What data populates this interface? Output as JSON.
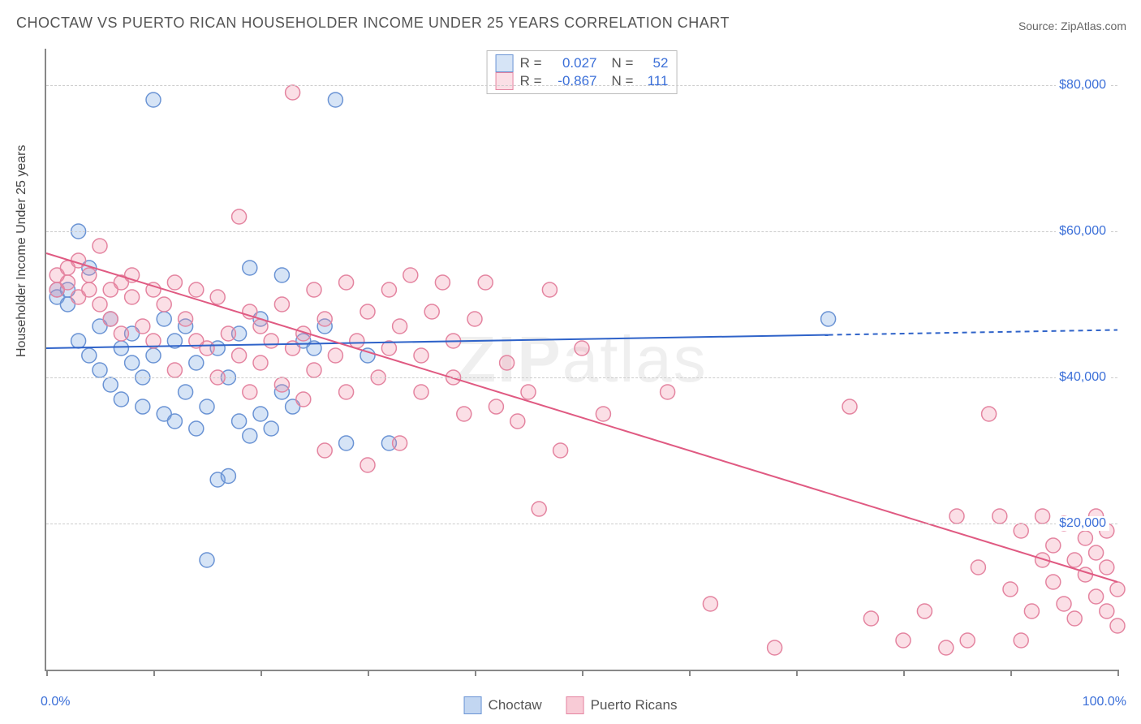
{
  "title": "CHOCTAW VS PUERTO RICAN HOUSEHOLDER INCOME UNDER 25 YEARS CORRELATION CHART",
  "source_label": "Source: ZipAtlas.com",
  "watermark": "ZIPatlas",
  "ylabel": "Householder Income Under 25 years",
  "chart": {
    "type": "scatter",
    "xlim": [
      0,
      100
    ],
    "ylim": [
      0,
      85000
    ],
    "x_axis_left_label": "0.0%",
    "x_axis_right_label": "100.0%",
    "y_gridlines": [
      20000,
      40000,
      60000,
      80000
    ],
    "y_gridline_labels": [
      "$20,000",
      "$40,000",
      "$60,000",
      "$80,000"
    ],
    "x_ticks": [
      0,
      10,
      20,
      30,
      40,
      50,
      60,
      70,
      80,
      90,
      100
    ],
    "background_color": "#ffffff",
    "grid_color": "#cccccc",
    "axis_color": "#888888",
    "tick_label_color": "#3b6fd8",
    "marker_radius": 9,
    "marker_stroke_width": 1.5,
    "series": [
      {
        "name": "Choctaw",
        "fill": "rgba(120,165,225,0.30)",
        "stroke": "#6a93d4",
        "R": "0.027",
        "N": "52",
        "trend": {
          "y_at_x0": 44000,
          "y_at_x100": 46500,
          "solid_to_x": 73,
          "color": "#2f63c9",
          "width": 2
        },
        "points": [
          [
            1,
            52000
          ],
          [
            1,
            51000
          ],
          [
            2,
            50000
          ],
          [
            2,
            52000
          ],
          [
            3,
            60000
          ],
          [
            3,
            45000
          ],
          [
            4,
            43000
          ],
          [
            4,
            55000
          ],
          [
            5,
            47000
          ],
          [
            5,
            41000
          ],
          [
            6,
            39000
          ],
          [
            6,
            48000
          ],
          [
            7,
            44000
          ],
          [
            7,
            37000
          ],
          [
            8,
            42000
          ],
          [
            8,
            46000
          ],
          [
            9,
            40000
          ],
          [
            9,
            36000
          ],
          [
            10,
            78000
          ],
          [
            10,
            43000
          ],
          [
            11,
            35000
          ],
          [
            11,
            48000
          ],
          [
            12,
            34000
          ],
          [
            12,
            45000
          ],
          [
            13,
            47000
          ],
          [
            13,
            38000
          ],
          [
            14,
            33000
          ],
          [
            14,
            42000
          ],
          [
            15,
            15000
          ],
          [
            15,
            36000
          ],
          [
            16,
            26000
          ],
          [
            16,
            44000
          ],
          [
            17,
            40000
          ],
          [
            17,
            26500
          ],
          [
            18,
            46000
          ],
          [
            18,
            34000
          ],
          [
            19,
            55000
          ],
          [
            19,
            32000
          ],
          [
            20,
            48000
          ],
          [
            20,
            35000
          ],
          [
            21,
            33000
          ],
          [
            22,
            54000
          ],
          [
            22,
            38000
          ],
          [
            23,
            36000
          ],
          [
            24,
            45000
          ],
          [
            25,
            44000
          ],
          [
            26,
            47000
          ],
          [
            27,
            78000
          ],
          [
            28,
            31000
          ],
          [
            30,
            43000
          ],
          [
            32,
            31000
          ],
          [
            73,
            48000
          ]
        ]
      },
      {
        "name": "Puerto Ricans",
        "fill": "rgba(240,140,165,0.28)",
        "stroke": "#e484a0",
        "R": "-0.867",
        "N": "111",
        "trend": {
          "y_at_x0": 57000,
          "y_at_x100": 12000,
          "solid_to_x": 100,
          "color": "#e05a82",
          "width": 2
        },
        "points": [
          [
            1,
            54000
          ],
          [
            1,
            52000
          ],
          [
            2,
            53000
          ],
          [
            2,
            55000
          ],
          [
            3,
            51000
          ],
          [
            3,
            56000
          ],
          [
            4,
            52000
          ],
          [
            4,
            54000
          ],
          [
            5,
            58000
          ],
          [
            5,
            50000
          ],
          [
            6,
            52000
          ],
          [
            6,
            48000
          ],
          [
            7,
            53000
          ],
          [
            7,
            46000
          ],
          [
            8,
            54000
          ],
          [
            8,
            51000
          ],
          [
            9,
            47000
          ],
          [
            10,
            52000
          ],
          [
            10,
            45000
          ],
          [
            11,
            50000
          ],
          [
            12,
            53000
          ],
          [
            12,
            41000
          ],
          [
            13,
            48000
          ],
          [
            14,
            52000
          ],
          [
            14,
            45000
          ],
          [
            15,
            44000
          ],
          [
            16,
            51000
          ],
          [
            16,
            40000
          ],
          [
            17,
            46000
          ],
          [
            18,
            62000
          ],
          [
            18,
            43000
          ],
          [
            19,
            49000
          ],
          [
            19,
            38000
          ],
          [
            20,
            47000
          ],
          [
            20,
            42000
          ],
          [
            21,
            45000
          ],
          [
            22,
            50000
          ],
          [
            22,
            39000
          ],
          [
            23,
            79000
          ],
          [
            23,
            44000
          ],
          [
            24,
            46000
          ],
          [
            24,
            37000
          ],
          [
            25,
            52000
          ],
          [
            25,
            41000
          ],
          [
            26,
            48000
          ],
          [
            26,
            30000
          ],
          [
            27,
            43000
          ],
          [
            28,
            53000
          ],
          [
            28,
            38000
          ],
          [
            29,
            45000
          ],
          [
            30,
            28000
          ],
          [
            30,
            49000
          ],
          [
            31,
            40000
          ],
          [
            32,
            44000
          ],
          [
            32,
            52000
          ],
          [
            33,
            47000
          ],
          [
            33,
            31000
          ],
          [
            34,
            54000
          ],
          [
            35,
            38000
          ],
          [
            35,
            43000
          ],
          [
            36,
            49000
          ],
          [
            37,
            53000
          ],
          [
            38,
            40000
          ],
          [
            38,
            45000
          ],
          [
            39,
            35000
          ],
          [
            40,
            48000
          ],
          [
            41,
            53000
          ],
          [
            42,
            36000
          ],
          [
            43,
            42000
          ],
          [
            44,
            34000
          ],
          [
            45,
            38000
          ],
          [
            46,
            22000
          ],
          [
            47,
            52000
          ],
          [
            48,
            30000
          ],
          [
            50,
            44000
          ],
          [
            52,
            35000
          ],
          [
            58,
            38000
          ],
          [
            62,
            9000
          ],
          [
            68,
            3000
          ],
          [
            75,
            36000
          ],
          [
            77,
            7000
          ],
          [
            80,
            4000
          ],
          [
            82,
            8000
          ],
          [
            84,
            3000
          ],
          [
            85,
            21000
          ],
          [
            86,
            4000
          ],
          [
            87,
            14000
          ],
          [
            88,
            35000
          ],
          [
            89,
            21000
          ],
          [
            90,
            11000
          ],
          [
            91,
            19000
          ],
          [
            91,
            4000
          ],
          [
            92,
            8000
          ],
          [
            93,
            15000
          ],
          [
            93,
            21000
          ],
          [
            94,
            12000
          ],
          [
            94,
            17000
          ],
          [
            95,
            9000
          ],
          [
            95,
            20000
          ],
          [
            96,
            15000
          ],
          [
            96,
            7000
          ],
          [
            97,
            13000
          ],
          [
            97,
            18000
          ],
          [
            98,
            10000
          ],
          [
            98,
            16000
          ],
          [
            98,
            21000
          ],
          [
            99,
            8000
          ],
          [
            99,
            14000
          ],
          [
            99,
            19000
          ],
          [
            100,
            11000
          ],
          [
            100,
            6000
          ]
        ]
      }
    ],
    "legend": {
      "swatch_border": 1,
      "items": [
        {
          "label": "Choctaw",
          "fill": "rgba(120,165,225,0.45)",
          "stroke": "#6a93d4"
        },
        {
          "label": "Puerto Ricans",
          "fill": "rgba(240,140,165,0.45)",
          "stroke": "#e484a0"
        }
      ]
    }
  }
}
